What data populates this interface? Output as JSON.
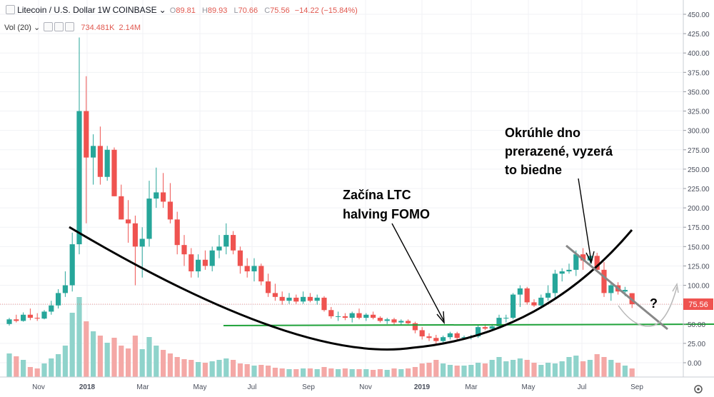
{
  "header": {
    "symbol": "Litecoin / U.S. Dollar",
    "interval": "1W",
    "exchange": "COINBASE",
    "o_label": "O",
    "o_value": "89.81",
    "h_label": "H",
    "h_value": "89.93",
    "l_label": "L",
    "l_value": "70.66",
    "c_label": "C",
    "c_value": "75.56",
    "change": "−14.22 (−15.84%)"
  },
  "volume": {
    "label": "Vol (20)",
    "value": "734.481K",
    "ma": "2.14M"
  },
  "colors": {
    "up": "#26a69a",
    "down": "#ef5350",
    "up_vol": "#8fd3cb",
    "down_vol": "#f4a8a6",
    "support": "#21a33b",
    "trend": "#000000"
  },
  "chart_data": {
    "type": "candlestick",
    "title": "Litecoin / U.S. Dollar, 1W, COINBASE",
    "ylim": [
      -25,
      462
    ],
    "y_ticks": [
      "450.00",
      "425.00",
      "400.00",
      "375.00",
      "350.00",
      "325.00",
      "300.00",
      "275.00",
      "250.00",
      "225.00",
      "200.00",
      "175.00",
      "150.00",
      "125.00",
      "100.00",
      "75.00",
      "50.00",
      "25.00",
      "0.00"
    ],
    "x_ticks": [
      "Nov",
      "2018",
      "Mar",
      "May",
      "Jul",
      "Sep",
      "Nov",
      "2019",
      "Mar",
      "May",
      "Jul",
      "Sep"
    ],
    "last_price": 75.56,
    "candles": [
      {
        "o": 50,
        "h": 58,
        "l": 48,
        "c": 56
      },
      {
        "o": 56,
        "h": 62,
        "l": 52,
        "c": 54
      },
      {
        "o": 54,
        "h": 65,
        "l": 53,
        "c": 62
      },
      {
        "o": 62,
        "h": 70,
        "l": 55,
        "c": 58
      },
      {
        "o": 58,
        "h": 64,
        "l": 54,
        "c": 57
      },
      {
        "o": 57,
        "h": 68,
        "l": 56,
        "c": 66
      },
      {
        "o": 66,
        "h": 80,
        "l": 62,
        "c": 74
      },
      {
        "o": 74,
        "h": 95,
        "l": 70,
        "c": 90
      },
      {
        "o": 90,
        "h": 118,
        "l": 85,
        "c": 100
      },
      {
        "o": 100,
        "h": 168,
        "l": 92,
        "c": 153
      },
      {
        "o": 153,
        "h": 420,
        "l": 140,
        "c": 325
      },
      {
        "o": 325,
        "h": 370,
        "l": 180,
        "c": 265
      },
      {
        "o": 265,
        "h": 295,
        "l": 230,
        "c": 280
      },
      {
        "o": 280,
        "h": 305,
        "l": 230,
        "c": 240
      },
      {
        "o": 240,
        "h": 280,
        "l": 235,
        "c": 275
      },
      {
        "o": 275,
        "h": 278,
        "l": 215,
        "c": 215
      },
      {
        "o": 215,
        "h": 230,
        "l": 185,
        "c": 185
      },
      {
        "o": 185,
        "h": 210,
        "l": 155,
        "c": 180
      },
      {
        "o": 180,
        "h": 190,
        "l": 100,
        "c": 150
      },
      {
        "o": 150,
        "h": 175,
        "l": 110,
        "c": 160
      },
      {
        "o": 160,
        "h": 235,
        "l": 150,
        "c": 212
      },
      {
        "o": 212,
        "h": 252,
        "l": 200,
        "c": 220
      },
      {
        "o": 220,
        "h": 245,
        "l": 200,
        "c": 208
      },
      {
        "o": 208,
        "h": 232,
        "l": 180,
        "c": 185
      },
      {
        "o": 185,
        "h": 195,
        "l": 140,
        "c": 152
      },
      {
        "o": 152,
        "h": 165,
        "l": 125,
        "c": 140
      },
      {
        "o": 140,
        "h": 148,
        "l": 110,
        "c": 118
      },
      {
        "o": 118,
        "h": 140,
        "l": 110,
        "c": 133
      },
      {
        "o": 133,
        "h": 145,
        "l": 120,
        "c": 125
      },
      {
        "o": 125,
        "h": 150,
        "l": 118,
        "c": 145
      },
      {
        "o": 145,
        "h": 165,
        "l": 135,
        "c": 150
      },
      {
        "o": 150,
        "h": 180,
        "l": 140,
        "c": 165
      },
      {
        "o": 165,
        "h": 170,
        "l": 140,
        "c": 145
      },
      {
        "o": 145,
        "h": 150,
        "l": 115,
        "c": 125
      },
      {
        "o": 125,
        "h": 135,
        "l": 110,
        "c": 118
      },
      {
        "o": 118,
        "h": 135,
        "l": 105,
        "c": 125
      },
      {
        "o": 125,
        "h": 128,
        "l": 100,
        "c": 105
      },
      {
        "o": 105,
        "h": 115,
        "l": 85,
        "c": 90
      },
      {
        "o": 90,
        "h": 102,
        "l": 80,
        "c": 85
      },
      {
        "o": 85,
        "h": 92,
        "l": 75,
        "c": 80
      },
      {
        "o": 80,
        "h": 90,
        "l": 76,
        "c": 84
      },
      {
        "o": 84,
        "h": 88,
        "l": 76,
        "c": 79
      },
      {
        "o": 79,
        "h": 92,
        "l": 76,
        "c": 85
      },
      {
        "o": 85,
        "h": 90,
        "l": 78,
        "c": 80
      },
      {
        "o": 80,
        "h": 88,
        "l": 75,
        "c": 84
      },
      {
        "o": 84,
        "h": 86,
        "l": 66,
        "c": 68
      },
      {
        "o": 68,
        "h": 72,
        "l": 57,
        "c": 60
      },
      {
        "o": 60,
        "h": 66,
        "l": 54,
        "c": 60
      },
      {
        "o": 60,
        "h": 64,
        "l": 55,
        "c": 58
      },
      {
        "o": 58,
        "h": 66,
        "l": 52,
        "c": 64
      },
      {
        "o": 64,
        "h": 70,
        "l": 56,
        "c": 58
      },
      {
        "o": 58,
        "h": 64,
        "l": 54,
        "c": 62
      },
      {
        "o": 62,
        "h": 66,
        "l": 56,
        "c": 58
      },
      {
        "o": 58,
        "h": 60,
        "l": 52,
        "c": 54
      },
      {
        "o": 54,
        "h": 58,
        "l": 50,
        "c": 56
      },
      {
        "o": 56,
        "h": 58,
        "l": 48,
        "c": 52
      },
      {
        "o": 52,
        "h": 56,
        "l": 48,
        "c": 54
      },
      {
        "o": 54,
        "h": 56,
        "l": 50,
        "c": 51
      },
      {
        "o": 51,
        "h": 53,
        "l": 38,
        "c": 42
      },
      {
        "o": 42,
        "h": 46,
        "l": 30,
        "c": 34
      },
      {
        "o": 34,
        "h": 38,
        "l": 28,
        "c": 32
      },
      {
        "o": 32,
        "h": 36,
        "l": 24,
        "c": 28
      },
      {
        "o": 28,
        "h": 35,
        "l": 26,
        "c": 33
      },
      {
        "o": 33,
        "h": 40,
        "l": 30,
        "c": 38
      },
      {
        "o": 38,
        "h": 40,
        "l": 30,
        "c": 32
      },
      {
        "o": 32,
        "h": 35,
        "l": 30,
        "c": 33
      },
      {
        "o": 33,
        "h": 36,
        "l": 30,
        "c": 34
      },
      {
        "o": 34,
        "h": 48,
        "l": 32,
        "c": 46
      },
      {
        "o": 46,
        "h": 50,
        "l": 42,
        "c": 44
      },
      {
        "o": 44,
        "h": 50,
        "l": 43,
        "c": 47
      },
      {
        "o": 47,
        "h": 62,
        "l": 45,
        "c": 58
      },
      {
        "o": 58,
        "h": 62,
        "l": 52,
        "c": 58
      },
      {
        "o": 58,
        "h": 90,
        "l": 56,
        "c": 88
      },
      {
        "o": 88,
        "h": 100,
        "l": 72,
        "c": 96
      },
      {
        "o": 96,
        "h": 98,
        "l": 75,
        "c": 78
      },
      {
        "o": 78,
        "h": 82,
        "l": 72,
        "c": 74
      },
      {
        "o": 74,
        "h": 88,
        "l": 70,
        "c": 84
      },
      {
        "o": 84,
        "h": 100,
        "l": 80,
        "c": 90
      },
      {
        "o": 90,
        "h": 120,
        "l": 82,
        "c": 115
      },
      {
        "o": 115,
        "h": 122,
        "l": 105,
        "c": 118
      },
      {
        "o": 118,
        "h": 128,
        "l": 115,
        "c": 120
      },
      {
        "o": 120,
        "h": 145,
        "l": 112,
        "c": 140
      },
      {
        "o": 140,
        "h": 148,
        "l": 120,
        "c": 132
      },
      {
        "o": 132,
        "h": 142,
        "l": 125,
        "c": 138
      },
      {
        "o": 138,
        "h": 142,
        "l": 118,
        "c": 120
      },
      {
        "o": 120,
        "h": 130,
        "l": 85,
        "c": 90
      },
      {
        "o": 90,
        "h": 102,
        "l": 80,
        "c": 100
      },
      {
        "o": 100,
        "h": 104,
        "l": 88,
        "c": 92
      },
      {
        "o": 92,
        "h": 98,
        "l": 86,
        "c": 94
      },
      {
        "o": 89.81,
        "h": 89.93,
        "l": 70.66,
        "c": 75.56
      }
    ],
    "volume_max_label": "volume bars",
    "trendlines": [
      {
        "name": "rounded-bottom",
        "points": [
          [
            10.5,
            175
          ],
          [
            25,
            135
          ],
          [
            40,
            95
          ],
          [
            55,
            60
          ],
          [
            66,
            25
          ],
          [
            73,
            25
          ],
          [
            80,
            45
          ],
          [
            90,
            100
          ],
          [
            100,
            135
          ],
          [
            109,
            172
          ]
        ]
      },
      {
        "name": "support",
        "points": [
          [
            37.5,
            48
          ],
          [
            123,
            48
          ]
        ]
      },
      {
        "name": "descending",
        "points": [
          [
            97.5,
            150
          ],
          [
            114,
            43
          ]
        ]
      }
    ],
    "annotations": [
      {
        "text": "Začína LTC halving FOMO"
      },
      {
        "text": "Okrúhle dno prerazené, vyzerá to biedne"
      },
      {
        "text": "?"
      }
    ]
  },
  "annotation_lines": {
    "a1_l1": "Začína LTC",
    "a1_l2": "halving FOMO",
    "a2_l1": "Okrúhle dno",
    "a2_l2": "prerazené, vyzerá",
    "a2_l3": "to biedne",
    "a3": "?"
  },
  "axis": {
    "price_tag": "75.56"
  }
}
